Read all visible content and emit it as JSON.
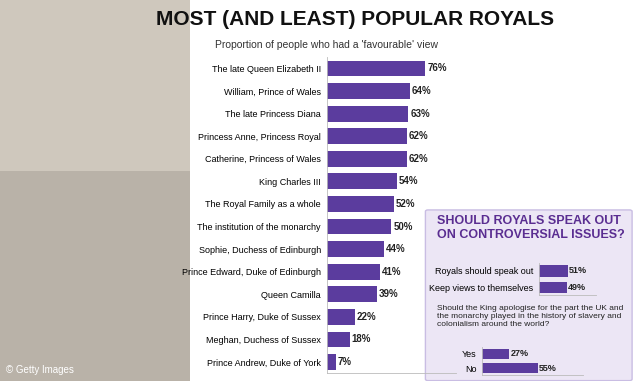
{
  "chart_data": [
    {
      "type": "bar",
      "orientation": "horizontal",
      "title": "MOST (AND LEAST) POPULAR ROYALS",
      "subtitle": "Proportion of people who had a 'favourable' view",
      "categories": [
        "The late Queen Elizabeth II",
        "William, Prince of Wales",
        "The late Princess Diana",
        "Princess Anne, Princess Royal",
        "Catherine, Princess of Wales",
        "King Charles III",
        "The Royal Family as a whole",
        "The institution of the monarchy",
        "Sophie, Duchess of Edinburgh",
        "Prince Edward, Duke of Edinburgh",
        "Queen Camilla",
        "Prince Harry, Duke of Sussex",
        "Meghan, Duchess of Sussex",
        "Prince Andrew, Duke of York"
      ],
      "values": [
        76,
        64,
        63,
        62,
        62,
        54,
        52,
        50,
        44,
        41,
        39,
        22,
        18,
        7
      ],
      "value_labels": [
        "76%",
        "64%",
        "63%",
        "62%",
        "62%",
        "54%",
        "52%",
        "50%",
        "44%",
        "41%",
        "39%",
        "22%",
        "18%",
        "7%"
      ],
      "color": "#5b3c9e",
      "xlim": [
        0,
        100
      ],
      "data_labels": true,
      "tick_labels": "y",
      "annotations": [
        "© Getty Images"
      ]
    },
    {
      "type": "bar",
      "orientation": "horizontal",
      "title": "SHOULD ROYALS SPEAK OUT ON CONTROVERSIAL ISSUES?",
      "categories": [
        "Royals should speak out",
        "Keep views to themselves"
      ],
      "values": [
        51,
        49
      ],
      "value_labels": [
        "51%",
        "49%"
      ],
      "color": "#5b3c9e",
      "xlim": [
        0,
        100
      ],
      "data_labels": true,
      "tick_labels": "y"
    },
    {
      "type": "bar",
      "orientation": "horizontal",
      "title": "Should the King apologise for the part the UK and the monarchy played in the history of slavery and colonialism around the world?",
      "categories": [
        "Yes",
        "No"
      ],
      "values": [
        27,
        55
      ],
      "value_labels": [
        "27%",
        "55%"
      ],
      "color": "#5b3c9e",
      "xlim": [
        0,
        100
      ],
      "data_labels": true,
      "tick_labels": "y"
    }
  ]
}
